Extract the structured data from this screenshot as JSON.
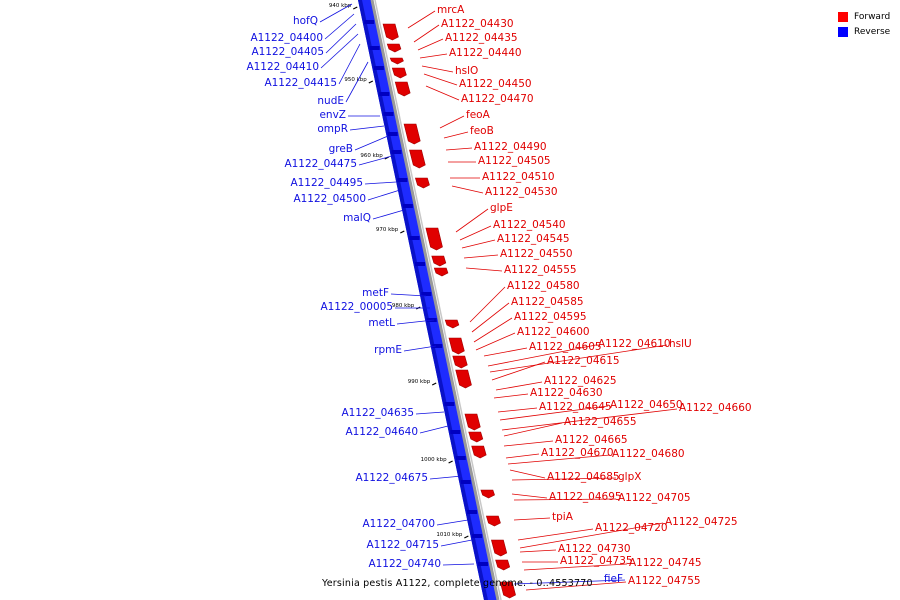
{
  "legend": {
    "items": [
      {
        "label": "Forward",
        "color": "#ff0000"
      },
      {
        "label": "Reverse",
        "color": "#0000ff"
      }
    ]
  },
  "caption": "Yersinia pestis A1122, complete genome. - 0..4553770",
  "colors": {
    "forward_feature": "#e00000",
    "reverse_feature": "#1010e0",
    "backbone": "#888888"
  },
  "ticks": [
    "940 kbp",
    "950 kbp",
    "960 kbp",
    "970 kbp",
    "980 kbp",
    "990 kbp",
    "1000 kbp",
    "1010 kbp"
  ],
  "forward_genes": [
    "mrcA",
    "A1122_04430",
    "A1122_04435",
    "A1122_04440",
    "hslO",
    "A1122_04450",
    "A1122_04470",
    "feoA",
    "feoB",
    "A1122_04490",
    "A1122_04505",
    "A1122_04510",
    "A1122_04530",
    "glpE",
    "A1122_04540",
    "A1122_04545",
    "A1122_04550",
    "A1122_04555",
    "A1122_04580",
    "A1122_04585",
    "A1122_04595",
    "A1122_04600",
    "A1122_04605",
    "A1122_04610",
    "hslU",
    "A1122_04615",
    "A1122_04625",
    "A1122_04630",
    "A1122_04645",
    "A1122_04650",
    "A1122_04660",
    "A1122_04655",
    "A1122_04665",
    "A1122_04670",
    "A1122_04680",
    "A1122_04685",
    "glpX",
    "A1122_04695",
    "A1122_04705",
    "tpiA",
    "A1122_04720",
    "A1122_04725",
    "A1122_04730",
    "A1122_04735",
    "A1122_04745",
    "A1122_04755"
  ],
  "reverse_genes": [
    "hofQ",
    "A1122_04400",
    "A1122_04405",
    "A1122_04410",
    "A1122_04415",
    "nudE",
    "envZ",
    "ompR",
    "greB",
    "A1122_04475",
    "A1122_04495",
    "A1122_04500",
    "malQ",
    "metF",
    "A1122_00005",
    "metL",
    "rpmE",
    "A1122_04635",
    "A1122_04640",
    "A1122_04675",
    "A1122_04700",
    "A1122_04715",
    "A1122_04740",
    "fieF"
  ]
}
